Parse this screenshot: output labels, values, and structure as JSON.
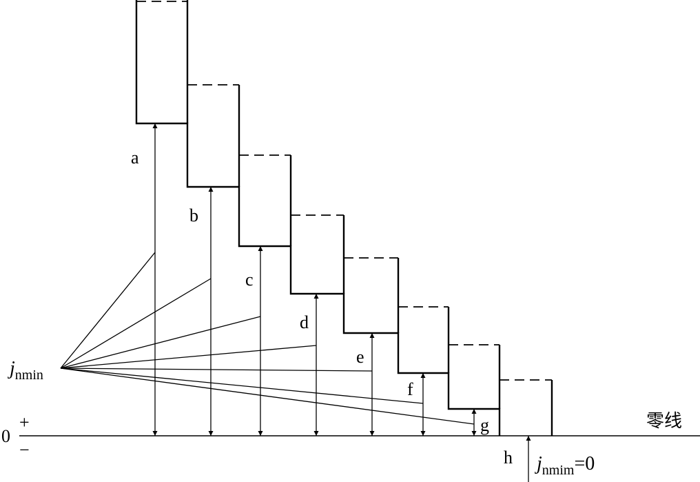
{
  "diagram": {
    "letters": [
      "a",
      "b",
      "c",
      "d",
      "e",
      "f",
      "g",
      "h"
    ],
    "origin_label": {
      "base": "j",
      "subscript": "nmin"
    },
    "zero_label": "0",
    "plus_sign": "+",
    "minus_sign": "−",
    "zero_line_label": "零线",
    "h_note": {
      "base": "j",
      "subscript": "nmim",
      "suffix": "=0"
    }
  }
}
